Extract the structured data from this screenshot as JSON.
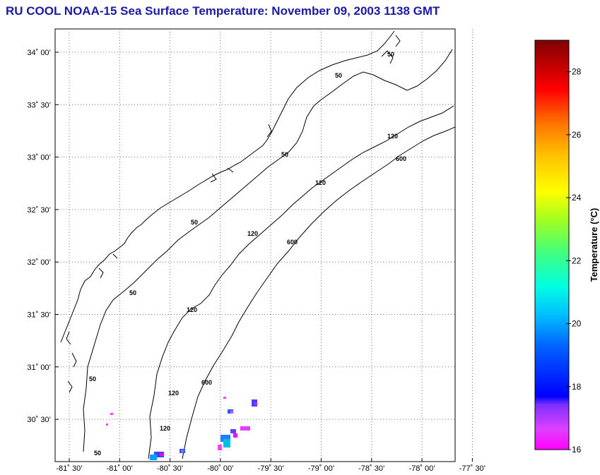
{
  "title": "RU COOL  NOAA-15  Sea Surface Temperature:  November 09, 2003 1138 GMT",
  "map": {
    "lat_ticks": [
      {
        "value": 34.0,
        "label": "34˚ 00’"
      },
      {
        "value": 33.5,
        "label": "33˚ 30’"
      },
      {
        "value": 33.0,
        "label": "33˚ 00’"
      },
      {
        "value": 32.5,
        "label": "32˚ 30’"
      },
      {
        "value": 32.0,
        "label": "32˚ 00’"
      },
      {
        "value": 31.5,
        "label": "31˚ 30’"
      },
      {
        "value": 31.0,
        "label": "31˚ 00’"
      },
      {
        "value": 30.5,
        "label": "30˚ 30’"
      }
    ],
    "lon_ticks": [
      {
        "value": -81.5,
        "label": "-81˚ 30’"
      },
      {
        "value": -81.0,
        "label": "-81˚ 00’"
      },
      {
        "value": -80.5,
        "label": "-80˚ 30’"
      },
      {
        "value": -80.0,
        "label": "-80˚ 00’"
      },
      {
        "value": -79.5,
        "label": "-79˚ 30’"
      },
      {
        "value": -79.0,
        "label": "-79˚ 00’"
      },
      {
        "value": -78.5,
        "label": "-78˚ 30’"
      },
      {
        "value": -78.0,
        "label": "-78˚ 00’"
      },
      {
        "value": -77.5,
        "label": "-77˚ 30’"
      }
    ],
    "contour_labels": [
      "50",
      "120",
      "600"
    ]
  },
  "colorbar": {
    "label": "Temperature (°C)",
    "min": 16,
    "max": 29,
    "ticks": [
      16,
      18,
      20,
      22,
      24,
      26,
      28
    ]
  },
  "colors": {
    "title": "#1a1aa6"
  }
}
